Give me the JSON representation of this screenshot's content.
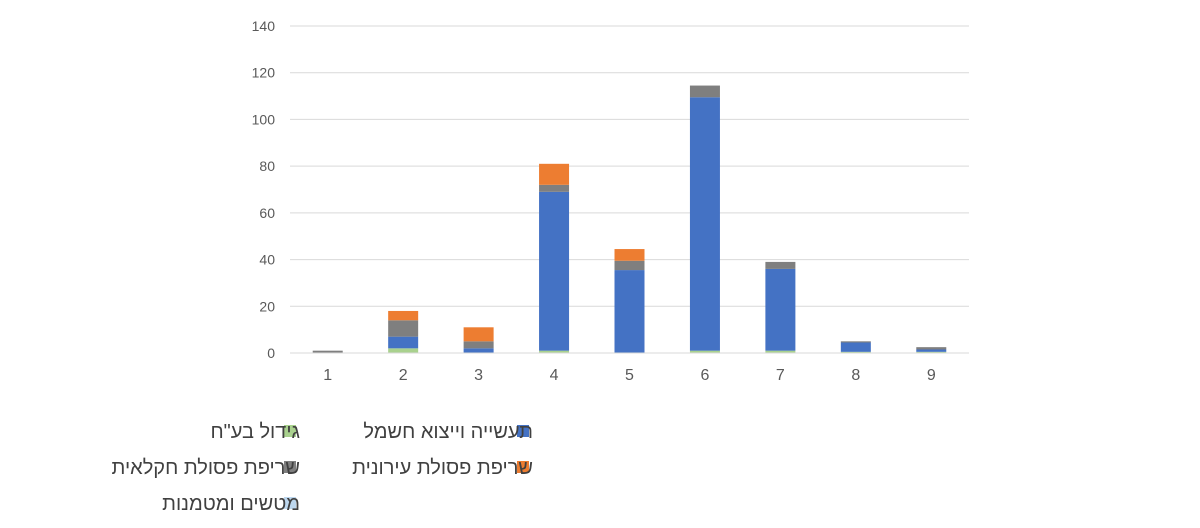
{
  "chart_data": {
    "type": "bar",
    "stacked": true,
    "categories": [
      "1",
      "2",
      "3",
      "4",
      "5",
      "6",
      "7",
      "8",
      "9"
    ],
    "ylim": [
      0,
      140
    ],
    "yticks": [
      0,
      20,
      40,
      60,
      80,
      100,
      120,
      140
    ],
    "grid": true,
    "legend_position": "bottom",
    "series": [
      {
        "name": "גידול בע\"ח",
        "color": "#a9d18e",
        "values": [
          0,
          2,
          0,
          1,
          0,
          1,
          1,
          0.5,
          0.5
        ]
      },
      {
        "name": "תעשייה וייצוא חשמל",
        "color": "#4472c4",
        "values": [
          0,
          5,
          2,
          68,
          35.5,
          108.5,
          35,
          4,
          1
        ]
      },
      {
        "name": "שריפת פסולת חקלאית",
        "color": "#7f7f7f",
        "values": [
          1,
          7,
          3,
          3,
          4,
          5,
          3,
          0.5,
          1
        ]
      },
      {
        "name": "שריפת פסולת עירונית",
        "color": "#ed7d31",
        "values": [
          0,
          4,
          6,
          9,
          5,
          0,
          0,
          0,
          0
        ]
      },
      {
        "name": "מטשים ומטמנות",
        "color": "#bdd7ee",
        "values": [
          0,
          0,
          0,
          0,
          0,
          0,
          0,
          0,
          0
        ]
      }
    ]
  }
}
